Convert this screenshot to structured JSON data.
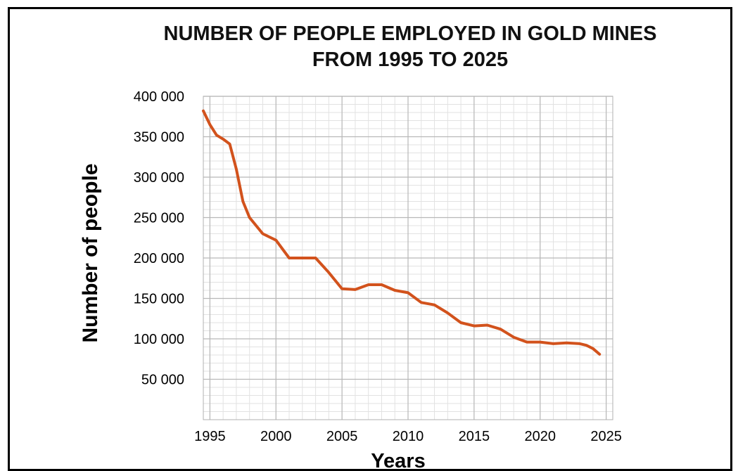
{
  "chart_data": {
    "type": "line",
    "title": "NUMBER OF PEOPLE EMPLOYED IN GOLD MINES",
    "subtitle": "FROM 1995 TO 2025",
    "xlabel": "Years",
    "ylabel": "Number of people",
    "xlim": [
      1994.5,
      2025.5
    ],
    "ylim": [
      0,
      400000
    ],
    "grid": true,
    "x_ticks": [
      {
        "value": 1995,
        "label": "1995"
      },
      {
        "value": 2000,
        "label": "2000"
      },
      {
        "value": 2005,
        "label": "2005"
      },
      {
        "value": 2010,
        "label": "2010"
      },
      {
        "value": 2015,
        "label": "2015"
      },
      {
        "value": 2020,
        "label": "2020"
      },
      {
        "value": 2025,
        "label": "2025"
      }
    ],
    "y_ticks": [
      {
        "value": 50000,
        "label": "50 000"
      },
      {
        "value": 100000,
        "label": "100 000"
      },
      {
        "value": 150000,
        "label": "150 000"
      },
      {
        "value": 200000,
        "label": "200 000"
      },
      {
        "value": 250000,
        "label": "250 000"
      },
      {
        "value": 300000,
        "label": "300 000"
      },
      {
        "value": 350000,
        "label": "350 000"
      },
      {
        "value": 400000,
        "label": "400 000"
      }
    ],
    "line_color": "#d2521c",
    "series": [
      {
        "x": [
          1994.5,
          1995,
          1995.5,
          1996,
          1996.5,
          1997,
          1997.5,
          1998,
          1999,
          2000,
          2001,
          2002,
          2003,
          2004,
          2005,
          2006,
          2007,
          2008,
          2009,
          2010,
          2011,
          2012,
          2013,
          2014,
          2015,
          2016,
          2017,
          2018,
          2019,
          2020,
          2021,
          2022,
          2023,
          2023.5,
          2024,
          2024.5
        ],
        "y": [
          382000,
          365000,
          352000,
          347000,
          341000,
          310000,
          270000,
          250000,
          230000,
          222000,
          200000,
          200000,
          200000,
          182000,
          162000,
          161000,
          167000,
          167000,
          160000,
          157000,
          145000,
          142000,
          132000,
          120000,
          116000,
          117000,
          112000,
          102000,
          96000,
          96000,
          94000,
          95000,
          94000,
          92000,
          88000,
          81000
        ]
      }
    ]
  }
}
